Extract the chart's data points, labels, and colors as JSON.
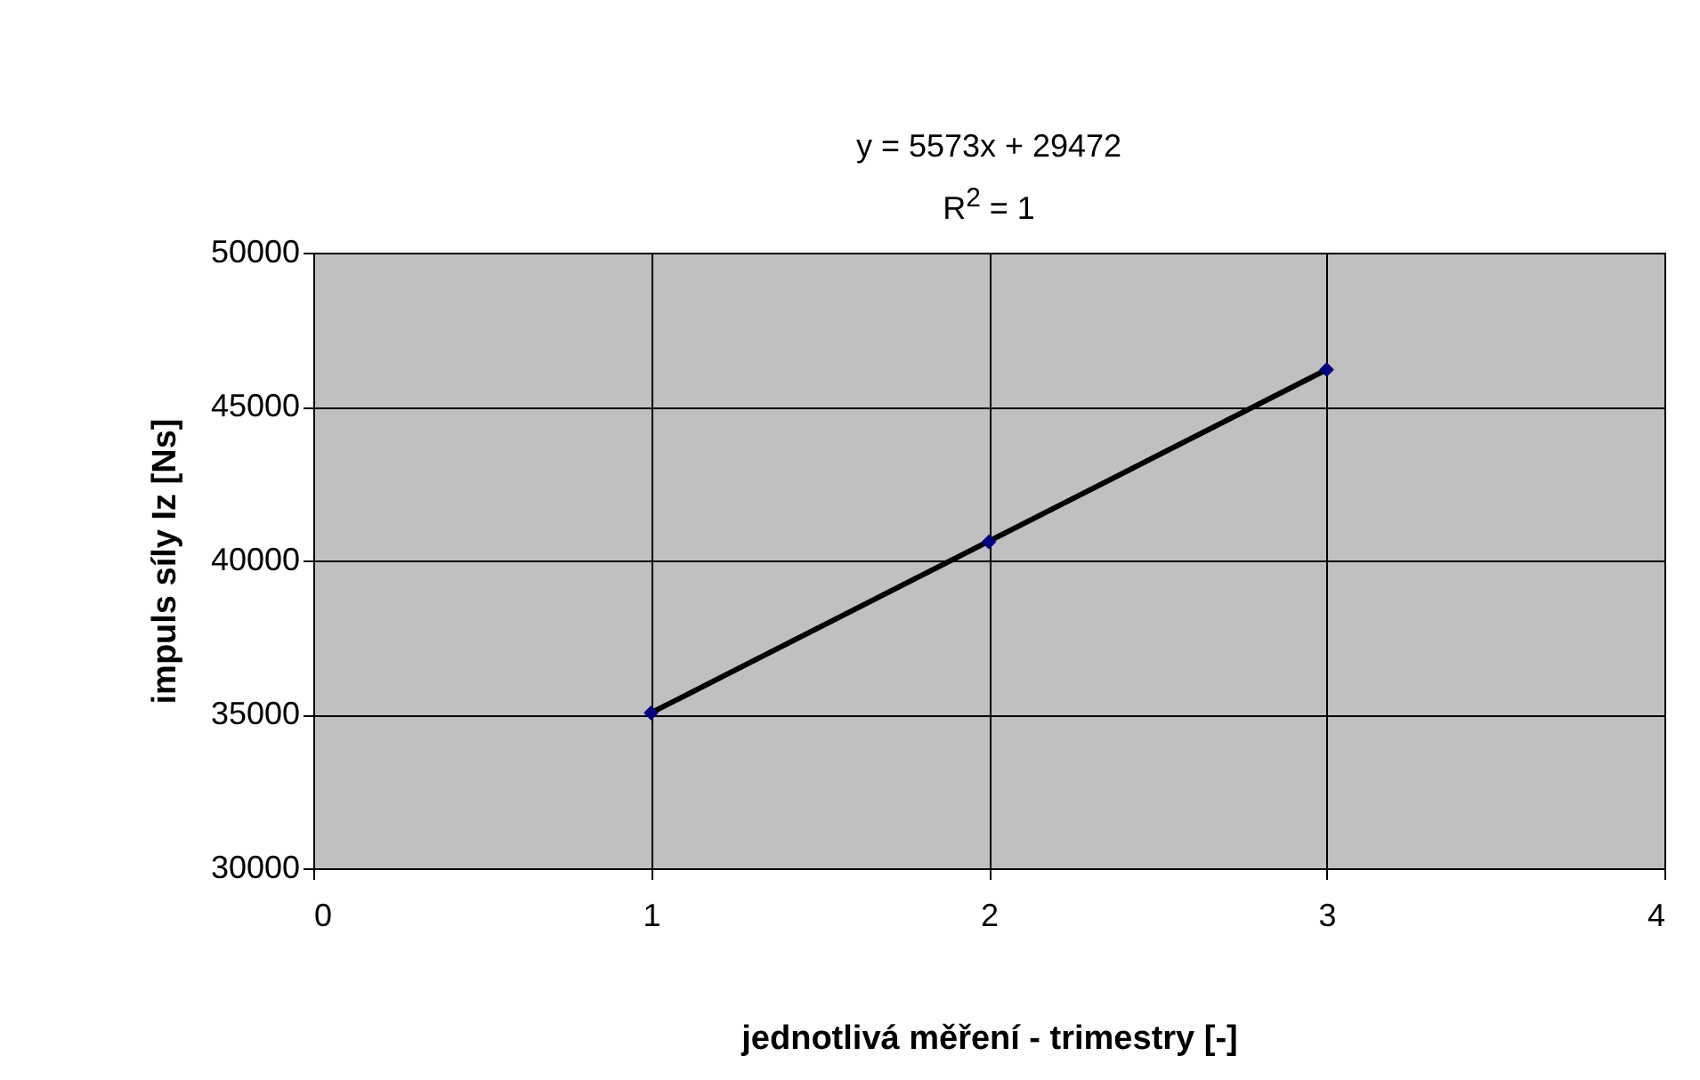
{
  "chart_data": {
    "type": "scatter",
    "xlabel": "jednotlivá měření - trimestry [-]",
    "ylabel": "impuls síly Iz [Ns]",
    "annotations": [
      "y = 5573x + 29472",
      "R$^{2}$ = 1"
    ],
    "x": [
      1,
      2,
      3
    ],
    "series": [
      {
        "color": "#000080",
        "values": [
          35050,
          40600,
          46200
        ]
      },
      {
        "type": "line",
        "color": "#000000",
        "marker": "none",
        "x": [
          1,
          3
        ],
        "values": [
          35050,
          46200
        ]
      }
    ],
    "xlim": [
      0,
      4
    ],
    "xticks": [
      0,
      1,
      2,
      3,
      4
    ],
    "ylim": [
      30000,
      50000
    ],
    "yticks": [
      30000,
      35000,
      40000,
      45000,
      50000
    ],
    "grid": true,
    "marker": "diamond",
    "line_style": "solid"
  }
}
